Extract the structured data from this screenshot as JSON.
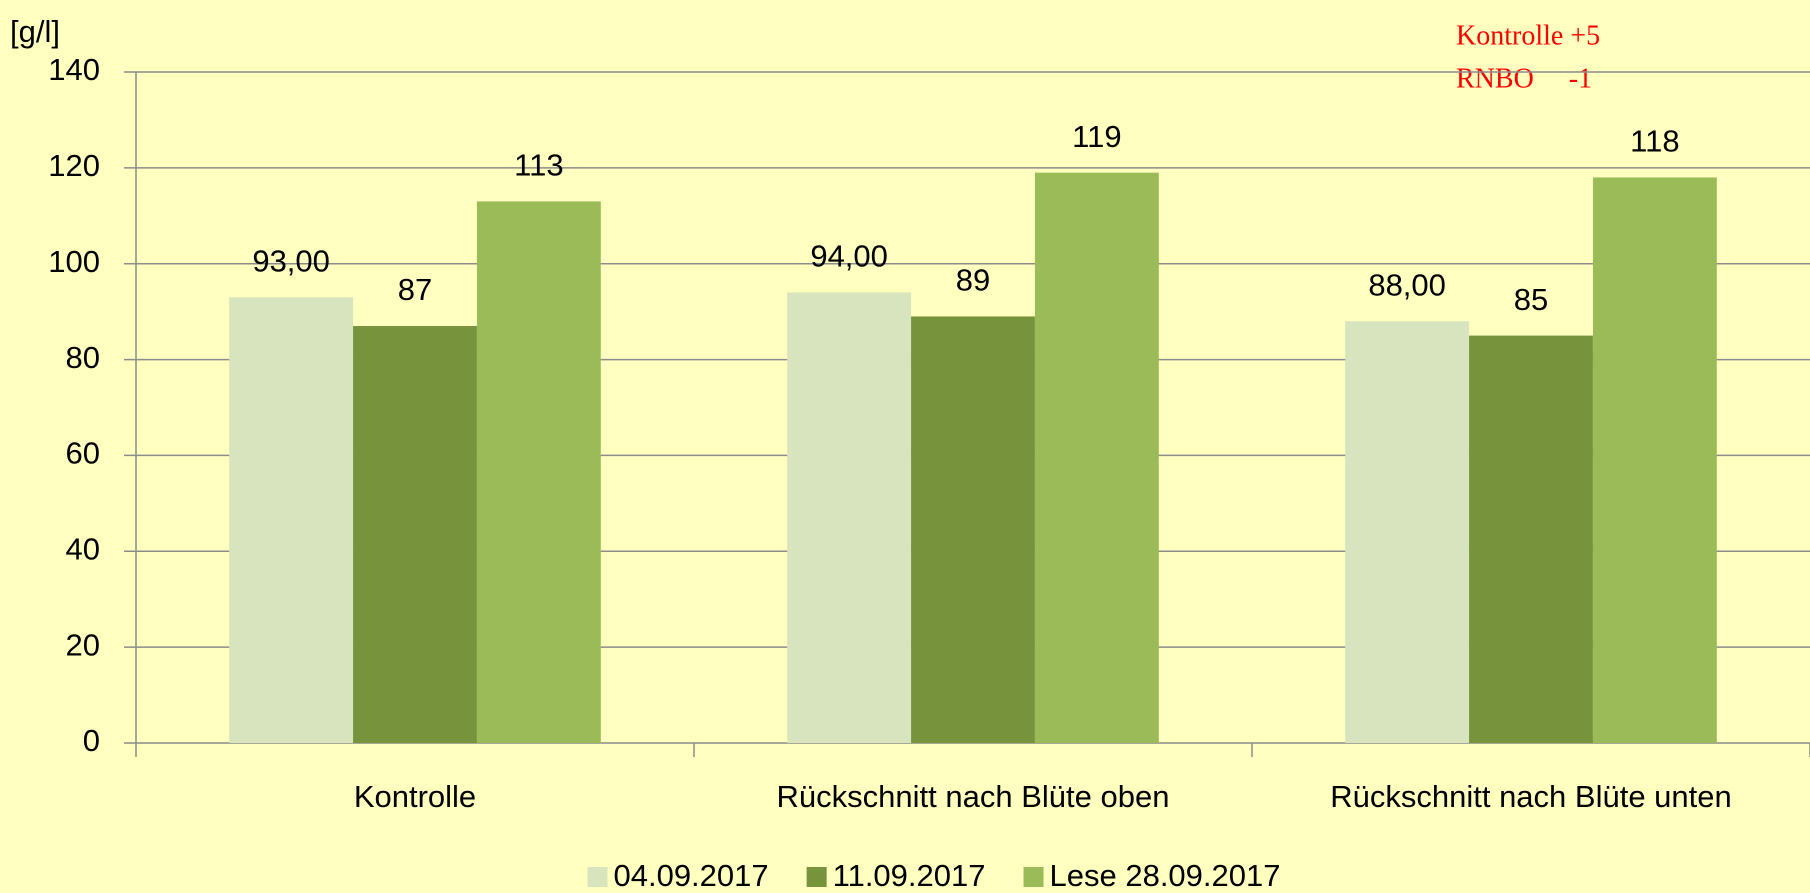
{
  "chart_data": {
    "type": "bar",
    "y_label": "[g/l]",
    "annotations": [
      "Kontrolle +5",
      "RNBO     -1"
    ],
    "categories": [
      "Kontrolle",
      "Rückschnitt nach Blüte oben",
      "Rückschnitt nach Blüte unten"
    ],
    "series": [
      {
        "name": "04.09.2017",
        "color": "#d7e4bd",
        "values": [
          93,
          94,
          88
        ],
        "value_labels": [
          "93,00",
          "94,00",
          "88,00"
        ]
      },
      {
        "name": "11.09.2017",
        "color": "#77933c",
        "values": [
          87,
          89,
          85
        ]
      },
      {
        "name": "Lese 28.09.2017",
        "color": "#9bbb59",
        "values": [
          113,
          119,
          118
        ]
      }
    ],
    "ylim": [
      0,
      140
    ],
    "yticks": [
      0,
      20,
      40,
      60,
      80,
      100,
      120,
      140
    ],
    "grid": true,
    "legend": "bottom"
  }
}
